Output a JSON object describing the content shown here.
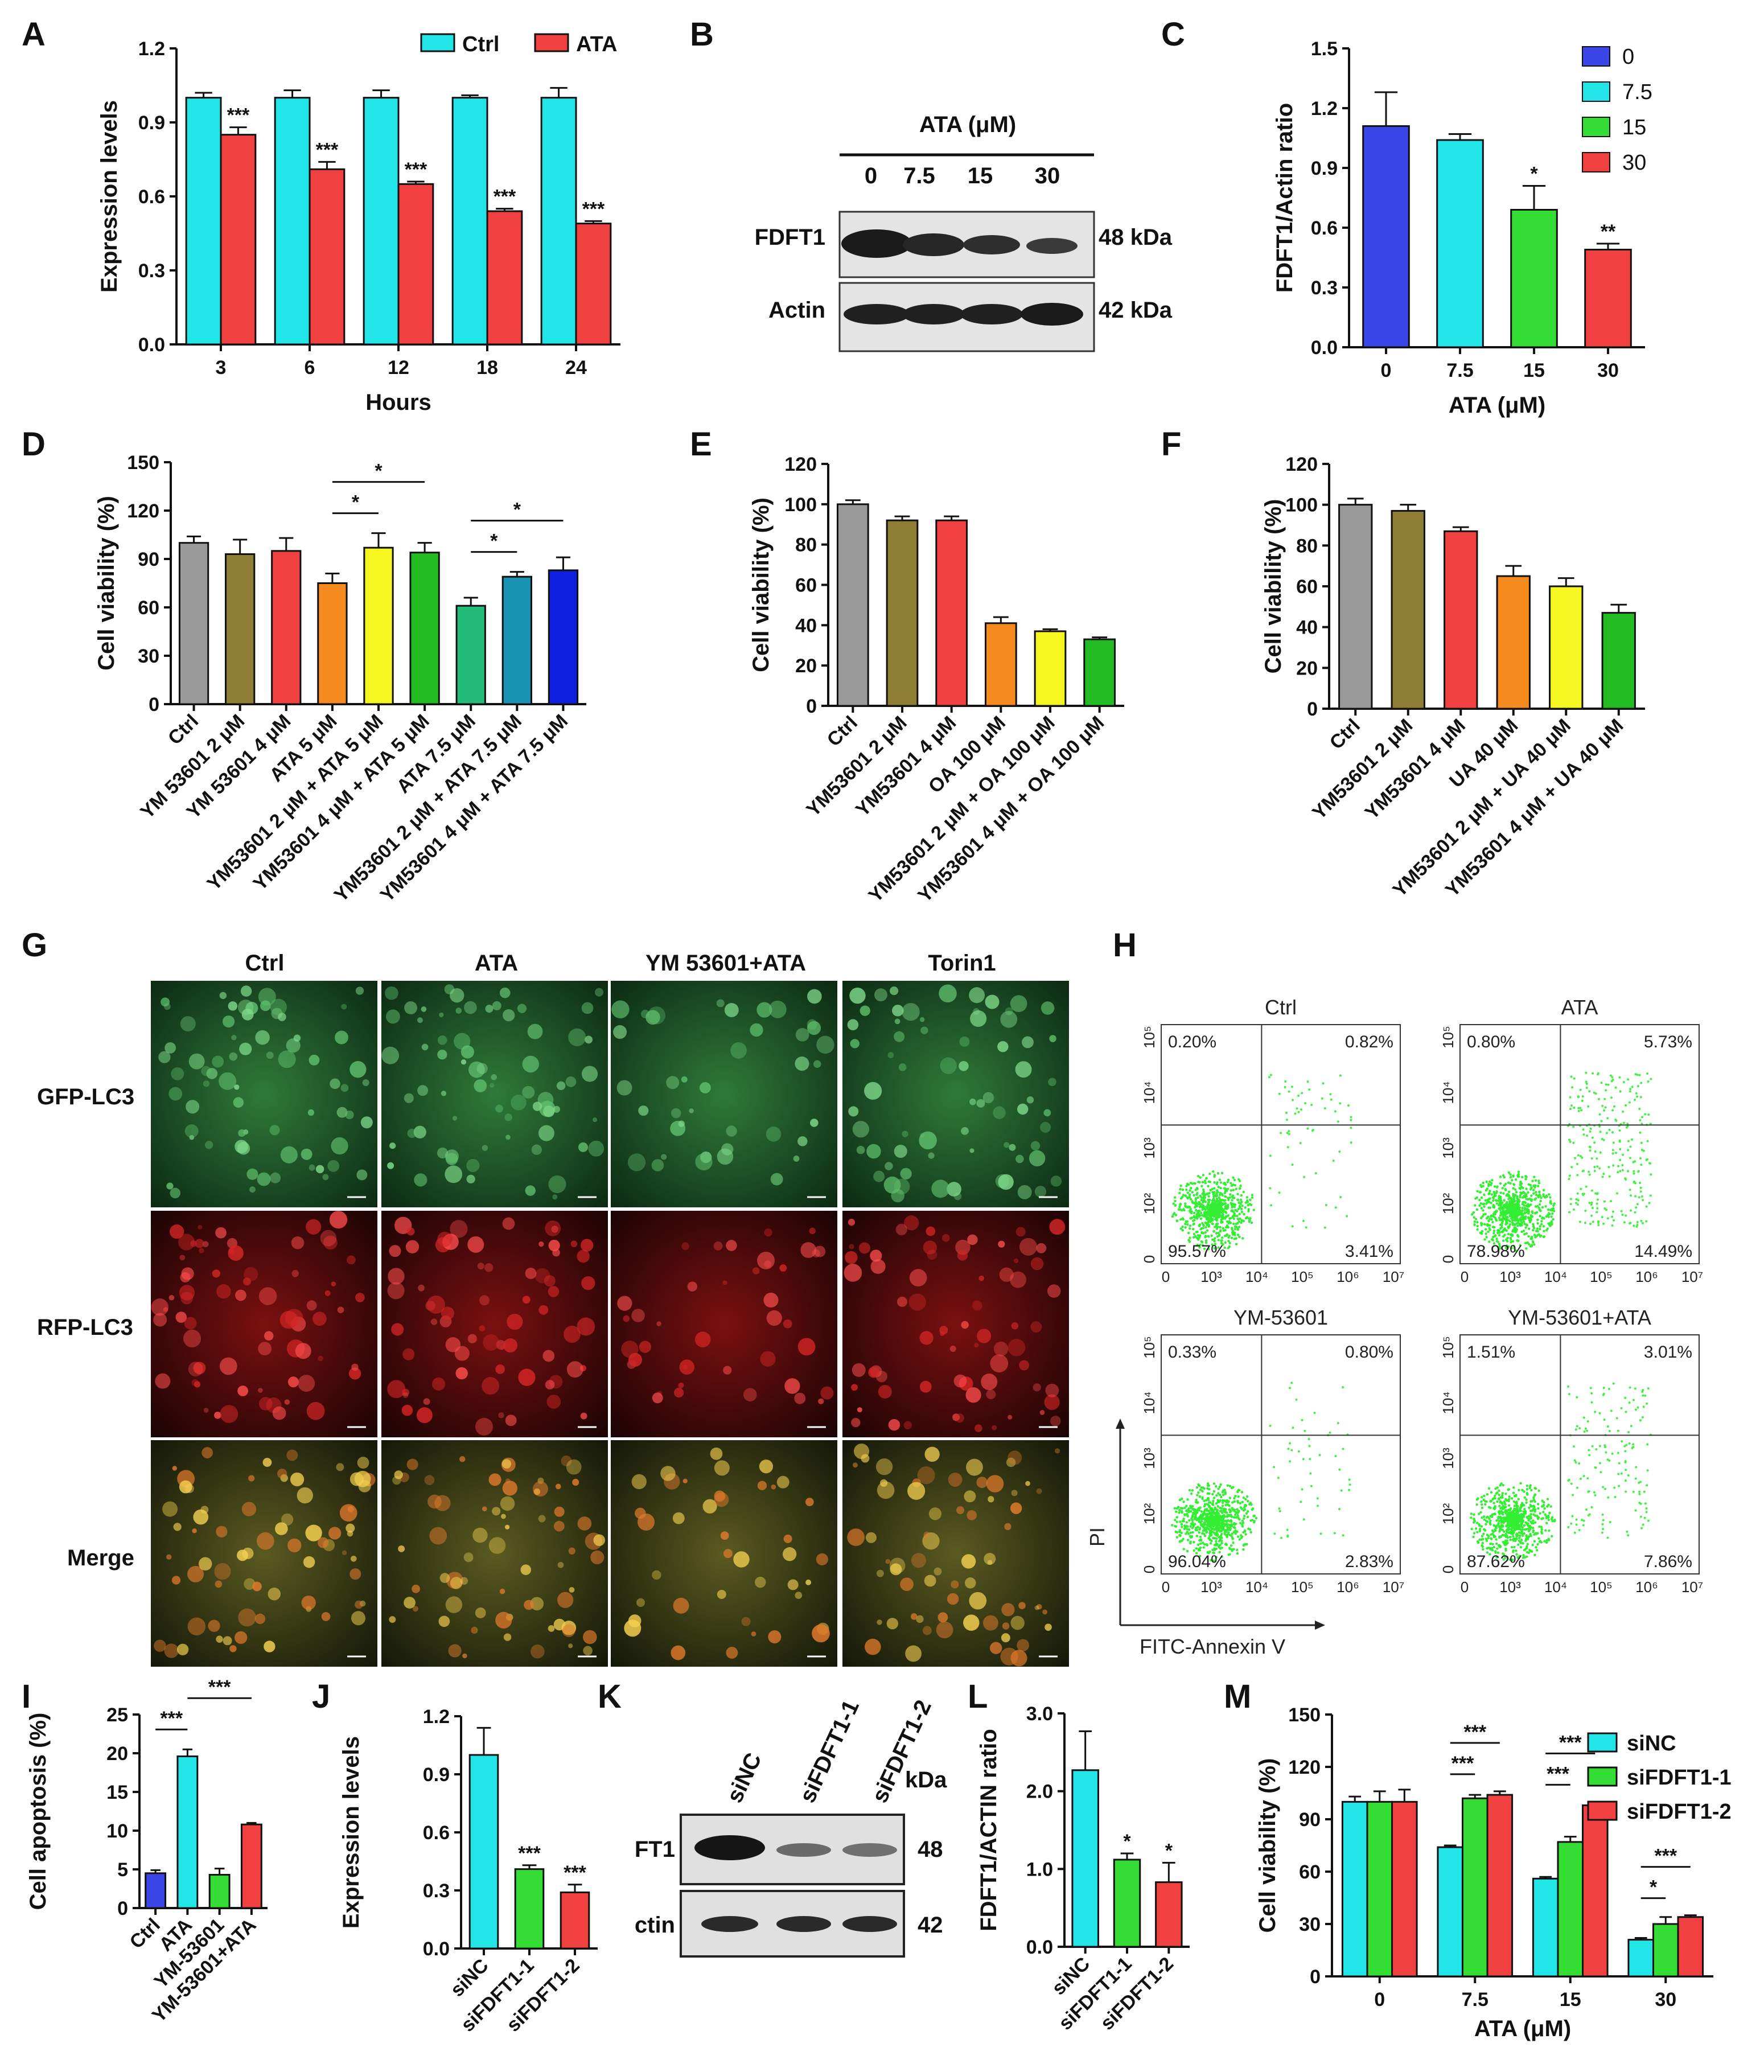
{
  "panels": {
    "A": "A",
    "B": "B",
    "C": "C",
    "D": "D",
    "E": "E",
    "F": "F",
    "G": "G",
    "H": "H",
    "I": "I",
    "J": "J",
    "K": "K",
    "L": "L",
    "M": "M"
  },
  "chart_data": [
    {
      "id": "A",
      "type": "bar",
      "categories": [
        "3",
        "6",
        "12",
        "18",
        "24"
      ],
      "series": [
        {
          "name": "Ctrl",
          "values": [
            1.0,
            1.0,
            1.0,
            1.0,
            1.0
          ],
          "err": [
            0.02,
            0.03,
            0.03,
            0.01,
            0.04
          ],
          "color": "#22e5e8"
        },
        {
          "name": "ATA",
          "values": [
            0.85,
            0.71,
            0.65,
            0.54,
            0.49
          ],
          "err": [
            0.03,
            0.03,
            0.01,
            0.01,
            0.01
          ],
          "color": "#f04040"
        }
      ],
      "sig": [
        "",
        "***",
        "",
        "***",
        "",
        "***",
        "",
        "***",
        "",
        "***"
      ],
      "xlabel": "Hours",
      "ylabel": "Expression levels",
      "ylim": [
        0,
        1.2
      ],
      "yticks": [
        "0.0",
        "0.3",
        "0.6",
        "0.9",
        "1.2"
      ],
      "legend_position": "top"
    },
    {
      "id": "C",
      "type": "bar",
      "categories": [
        "0",
        "7.5",
        "15",
        "30"
      ],
      "values": [
        1.11,
        1.04,
        0.69,
        0.49
      ],
      "err": [
        0.17,
        0.03,
        0.12,
        0.03
      ],
      "colors": [
        "#3b46e8",
        "#22e5e8",
        "#33dd33",
        "#f04040"
      ],
      "sig": [
        "",
        "",
        "*",
        "**"
      ],
      "legend": [
        "0",
        "7.5",
        "15",
        "30"
      ],
      "xlabel": "ATA (μM)",
      "ylabel": "FDFT1/Actin ratio",
      "ylim": [
        0,
        1.5
      ],
      "yticks": [
        "0.0",
        "0.3",
        "0.6",
        "0.9",
        "1.2",
        "1.5"
      ],
      "legend_position": "top-right"
    },
    {
      "id": "D",
      "type": "bar",
      "categories": [
        "Ctrl",
        "YM 53601 2 μM",
        "YM 53601 4 μM",
        "ATA 5 μM",
        "YM53601 2 μM + ATA 5 μM",
        "YM53601 4 μM + ATA 5 μM",
        "ATA 7.5 μM",
        "YM53601 2 μM + ATA 7.5 μM",
        "YM53601 4 μM + ATA 7.5 μM"
      ],
      "values": [
        100,
        93,
        95,
        75,
        97,
        94,
        61,
        79,
        83
      ],
      "err": [
        4,
        9,
        8,
        6,
        9,
        6,
        5,
        3,
        8
      ],
      "colors": [
        "#9a9a9a",
        "#8e7d35",
        "#f04040",
        "#f58a1f",
        "#f5f520",
        "#22bb22",
        "#22bb77",
        "#1a93b3",
        "#1020e0"
      ],
      "brackets": [
        [
          3,
          4,
          "*"
        ],
        [
          3,
          5,
          "*"
        ],
        [
          6,
          7,
          "*"
        ],
        [
          6,
          8,
          "*"
        ]
      ],
      "xlabel": "",
      "ylabel": "Cell viability (%)",
      "ylim": [
        0,
        150
      ],
      "yticks": [
        "0",
        "30",
        "60",
        "90",
        "120",
        "150"
      ]
    },
    {
      "id": "E",
      "type": "bar",
      "categories": [
        "Ctrl",
        "YM53601 2 μM",
        "YM53601 4 μM",
        "OA 100 μM",
        "YM53601 2 μM + OA 100 μM",
        "YM53601 4 μM + OA 100 μM"
      ],
      "values": [
        100,
        92,
        92,
        41,
        37,
        33
      ],
      "err": [
        2,
        2,
        2,
        3,
        1,
        1
      ],
      "colors": [
        "#9a9a9a",
        "#8e7d35",
        "#f04040",
        "#f58a1f",
        "#f5f520",
        "#22bb22"
      ],
      "xlabel": "",
      "ylabel": "Cell viability (%)",
      "ylim": [
        0,
        120
      ],
      "yticks": [
        "0",
        "20",
        "40",
        "60",
        "80",
        "100",
        "120"
      ]
    },
    {
      "id": "F",
      "type": "bar",
      "categories": [
        "Ctrl",
        "YM53601 2 μM",
        "YM53601 4 μM",
        "UA 40 μM",
        "YM53601 2 μM + UA 40 μM",
        "YM53601 4 μM + UA 40 μM"
      ],
      "values": [
        100,
        97,
        87,
        65,
        60,
        47
      ],
      "err": [
        3,
        3,
        2,
        5,
        4,
        4
      ],
      "colors": [
        "#9a9a9a",
        "#8e7d35",
        "#f04040",
        "#f58a1f",
        "#f5f520",
        "#22bb22"
      ],
      "xlabel": "",
      "ylabel": "Cell viability (%)",
      "ylim": [
        0,
        120
      ],
      "yticks": [
        "0",
        "20",
        "40",
        "60",
        "80",
        "100",
        "120"
      ]
    },
    {
      "id": "I",
      "type": "bar",
      "categories": [
        "Ctrl",
        "ATA",
        "YM-53601",
        "YM-53601+ATA"
      ],
      "values": [
        4.5,
        19.6,
        4.3,
        10.8
      ],
      "err": [
        0.4,
        0.9,
        0.8,
        0.2
      ],
      "colors": [
        "#3b46e8",
        "#22e5e8",
        "#33dd33",
        "#f04040"
      ],
      "brackets": [
        [
          0,
          1,
          "***"
        ],
        [
          1,
          3,
          "***"
        ]
      ],
      "xlabel": "",
      "ylabel": "Cell apoptosis (%)",
      "ylim": [
        0,
        25
      ],
      "yticks": [
        "0",
        "5",
        "10",
        "15",
        "20",
        "25"
      ]
    },
    {
      "id": "J",
      "type": "bar",
      "categories": [
        "siNC",
        "siFDFT1-1",
        "siFDFT1-2"
      ],
      "values": [
        1.0,
        0.41,
        0.29
      ],
      "err": [
        0.14,
        0.02,
        0.04
      ],
      "colors": [
        "#22e5e8",
        "#33dd33",
        "#f04040"
      ],
      "sig": [
        "",
        "***",
        "***"
      ],
      "xlabel": "",
      "ylabel": "Expression levels",
      "ylim": [
        0,
        1.2
      ],
      "yticks": [
        "0.0",
        "0.3",
        "0.6",
        "0.9",
        "1.2"
      ]
    },
    {
      "id": "L",
      "type": "bar",
      "categories": [
        "siNC",
        "siFDFT1-1",
        "siFDFT1-2"
      ],
      "values": [
        2.27,
        1.12,
        0.83
      ],
      "err": [
        0.5,
        0.08,
        0.25
      ],
      "colors": [
        "#22e5e8",
        "#33dd33",
        "#f04040"
      ],
      "sig": [
        "",
        "*",
        "*"
      ],
      "xlabel": "",
      "ylabel": "FDFT1/ACTIN ratio",
      "ylim": [
        0,
        3.0
      ],
      "yticks": [
        "0.0",
        "1.0",
        "2.0",
        "3.0"
      ]
    },
    {
      "id": "M",
      "type": "bar",
      "categories": [
        "0",
        "7.5",
        "15",
        "30"
      ],
      "series": [
        {
          "name": "siNC",
          "values": [
            100,
            74,
            56,
            21
          ],
          "err": [
            3,
            1,
            1,
            1
          ],
          "color": "#22e5e8"
        },
        {
          "name": "siFDFT1-1",
          "values": [
            100,
            102,
            77,
            30
          ],
          "err": [
            6,
            2,
            3,
            4
          ],
          "color": "#33dd33"
        },
        {
          "name": "siFDFT1-2",
          "values": [
            100,
            104,
            98,
            34
          ],
          "err": [
            7,
            2,
            2,
            1
          ],
          "color": "#f04040"
        }
      ],
      "brackets": [
        [
          1,
          0,
          1,
          "***"
        ],
        [
          1,
          0,
          2,
          "***"
        ],
        [
          2,
          0,
          1,
          "***"
        ],
        [
          2,
          0,
          2,
          "***"
        ],
        [
          3,
          0,
          1,
          "*"
        ],
        [
          3,
          0,
          2,
          "***"
        ]
      ],
      "xlabel": "ATA (μM)",
      "ylabel": "Cell viability (%)",
      "ylim": [
        0,
        150
      ],
      "yticks": [
        "0",
        "30",
        "60",
        "90",
        "120",
        "150"
      ],
      "legend_position": "top-right"
    }
  ],
  "blotB": {
    "title": "ATA (μM)",
    "lanes": [
      "0",
      "7.5",
      "15",
      "30"
    ],
    "rows": [
      "FDFT1",
      "Actin"
    ],
    "kda": [
      "48 kDa",
      "42 kDa"
    ]
  },
  "blotK": {
    "lanes": [
      "siNC",
      "siFDFT1-1",
      "siFDFT1-2"
    ],
    "kda_header": "kDa",
    "rows": [
      "FT1",
      "ctin"
    ],
    "kda": [
      "48",
      "42"
    ]
  },
  "micrograph": {
    "columns": [
      "Ctrl",
      "ATA",
      "YM 53601+ATA",
      "Torin1"
    ],
    "rows": [
      "GFP-LC3",
      "RFP-LC3",
      "Merge"
    ]
  },
  "flow": {
    "plots": [
      {
        "title": "Ctrl",
        "q": [
          "0.20%",
          "0.82%",
          "95.57%",
          "3.41%"
        ]
      },
      {
        "title": "ATA",
        "q": [
          "0.80%",
          "5.73%",
          "78.98%",
          "14.49%"
        ]
      },
      {
        "title": "YM-53601",
        "q": [
          "0.33%",
          "0.80%",
          "96.04%",
          "2.83%"
        ]
      },
      {
        "title": "YM-53601+ATA",
        "q": [
          "1.51%",
          "3.01%",
          "87.62%",
          "7.86%"
        ]
      }
    ],
    "xlabel": "FITC-Annexin V",
    "ylabel": "PI",
    "ticks": [
      "0",
      "10³",
      "10⁴",
      "10⁵",
      "10⁶",
      "10⁷"
    ],
    "yticks": [
      "0",
      "10²",
      "10³",
      "10⁴",
      "10⁵"
    ]
  }
}
